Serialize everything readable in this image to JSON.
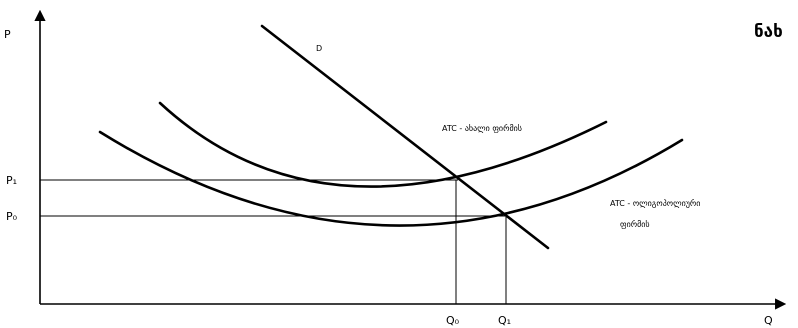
{
  "heading": "ნახ",
  "axes": {
    "y_label": "P",
    "x_label": "Q"
  },
  "prices": {
    "p1": "P₁",
    "p0": "P₀"
  },
  "quantities": {
    "q0": "Q₀",
    "q1": "Q₁"
  },
  "curves": {
    "demand": "D",
    "atc_new": "ATC - ახალი ფირმის",
    "atc_oligopoly_line1": "ATC - ოლიგოპოლიური",
    "atc_oligopoly_line2": "ფირმის"
  }
}
